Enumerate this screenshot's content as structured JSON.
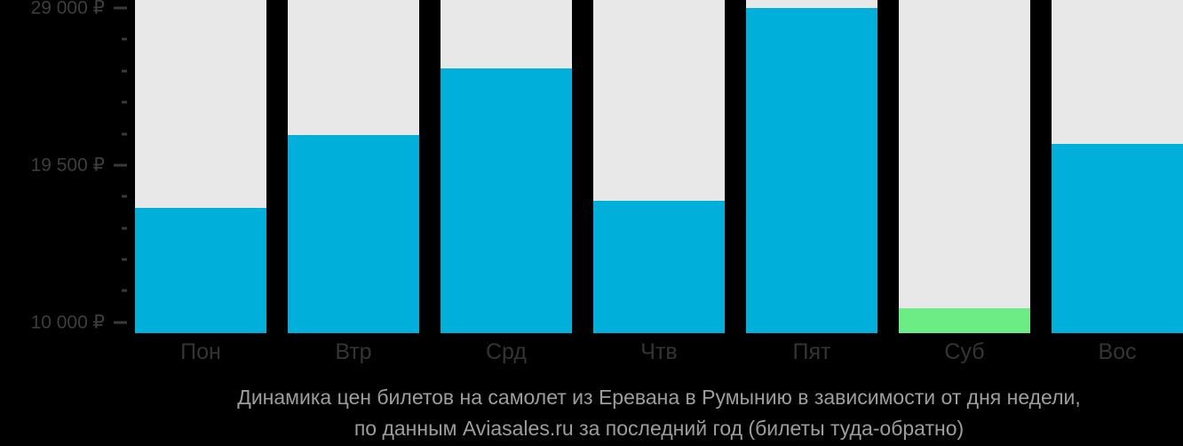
{
  "colors": {
    "background": "#000000",
    "column_bg": "#e8e8e8",
    "bar": "#00b0db",
    "highlight": "#6cec85",
    "axis_text": "#3d3d3d",
    "tick": "#3a3a3a",
    "title_text": "#9d9d9d"
  },
  "chart_data": {
    "type": "bar",
    "title_line1": "Динамика цен билетов на самолет из Еревана в Румынию в зависимости от дня недели,",
    "title_line2": "по данным Aviasales.ru за последний год (билеты туда-обратно)",
    "categories": [
      "Пон",
      "Втр",
      "Срд",
      "Чтв",
      "Пят",
      "Суб",
      "Вос"
    ],
    "values": [
      16900,
      21300,
      25350,
      17350,
      29000,
      10850,
      20800
    ],
    "currency": "₽",
    "highlight_index": 5,
    "axis_min": 9350,
    "axis_max": 29480,
    "ylim": [
      9350,
      29480
    ],
    "grid": "off",
    "legend": "none",
    "y_axis": {
      "major": [
        {
          "value": 29000,
          "label": "29 000 ₽"
        },
        {
          "value": 19500,
          "label": "19 500 ₽"
        },
        {
          "value": 10000,
          "label": "10 000 ₽"
        }
      ],
      "minor_values": [
        27100,
        25200,
        23300,
        21400,
        17600,
        15700,
        13800,
        11900
      ]
    }
  }
}
